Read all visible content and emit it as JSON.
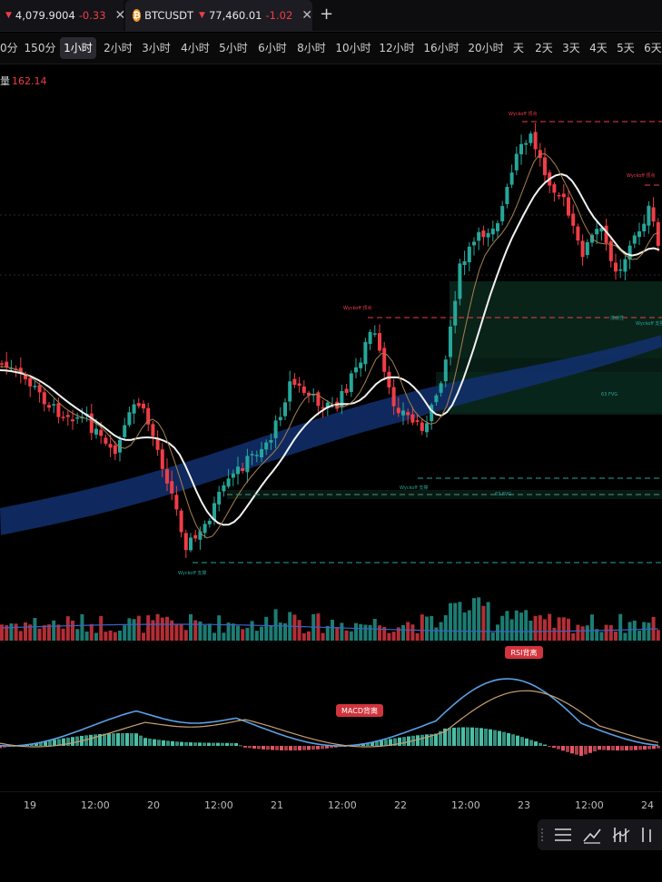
{
  "tabs": [
    {
      "price": "4,079.9004",
      "change": "-0.33",
      "arrow": "▼",
      "close": "✕"
    },
    {
      "symbol": "BTCUSDT",
      "coin_glyph": "₿",
      "price": "77,460.01",
      "change": "-1.02",
      "arrow": "▼",
      "close": "✕"
    }
  ],
  "add_tab": "+",
  "intervals": [
    "0分",
    "150分",
    "1小时",
    "2小时",
    "3小时",
    "4小时",
    "5小时",
    "6小时",
    "8小时",
    "10小时",
    "12小时",
    "16小时",
    "20小时",
    "天",
    "2天",
    "3天",
    "4天",
    "5天",
    "6天"
  ],
  "active_interval": "1小时",
  "volume": {
    "label": "量",
    "value": "162.14"
  },
  "annotations": {
    "wyckoff_top": "Wyckoff 顶点",
    "wyckoff_bottom": "Wyckoff 支撑",
    "fvg": "63 FVG",
    "fvg2": "63 FVG",
    "liquidity": "流动性",
    "macd_cross": "MACD背离",
    "rsi_cross": "RSI背离"
  },
  "xaxis": [
    "19",
    "12:00",
    "20",
    "12:00",
    "21",
    "12:00",
    "22",
    "12:00",
    "23",
    "12:00",
    "24"
  ],
  "colors": {
    "up": "#26a69a",
    "down": "#ef3d47",
    "ma_white": "#f2f2f2",
    "ma_tan": "#b08a5a",
    "macd_line": "#5aa0e6",
    "signal_line": "#c9a070",
    "band": "#13306a"
  },
  "icons": [
    "menu-lines-icon",
    "trend-line-icon",
    "indicator-bars-icon",
    "chart-style-icon"
  ]
}
